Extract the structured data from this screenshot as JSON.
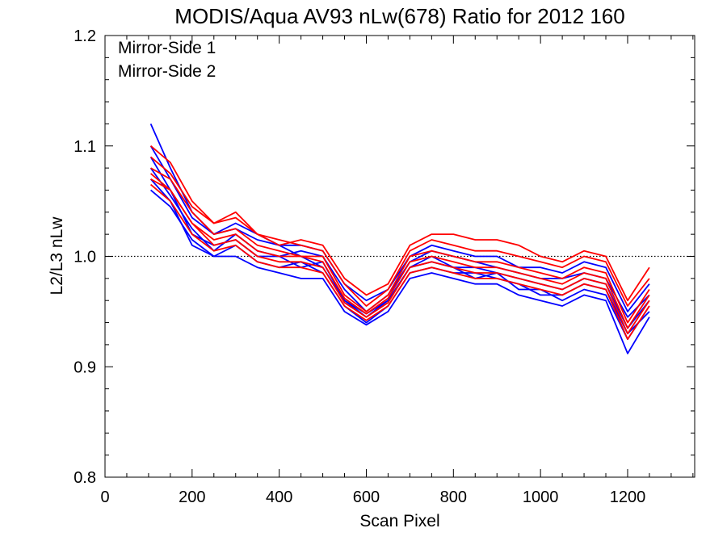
{
  "chart_data": {
    "type": "line",
    "title": "MODIS/Aqua AV93 nLw(678) Ratio for 2012 160",
    "xlabel": "Scan Pixel",
    "ylabel": "L2/L3 nLw",
    "xlim": [
      0,
      1354
    ],
    "ylim": [
      0.8,
      1.2
    ],
    "xticks": [
      0,
      200,
      400,
      600,
      800,
      1000,
      1200
    ],
    "yticks": [
      0.8,
      0.9,
      1.0,
      1.1,
      1.2
    ],
    "xtick_labels": [
      "0",
      "200",
      "400",
      "600",
      "800",
      "1000",
      "1200"
    ],
    "ytick_labels": [
      "0.8",
      "0.9",
      "1.0",
      "1.1",
      "1.2"
    ],
    "reference_line": {
      "y": 1.0,
      "style": "dotted"
    },
    "legend_position": "top-left",
    "colors": {
      "mirror_side_1": "#0000ff",
      "mirror_side_2": "#ff0000"
    },
    "x": [
      105,
      150,
      200,
      250,
      300,
      350,
      400,
      450,
      500,
      550,
      600,
      650,
      700,
      750,
      800,
      850,
      900,
      950,
      1000,
      1050,
      1100,
      1150,
      1200,
      1250
    ],
    "series": [
      {
        "name": "Mirror-Side 1",
        "group": 1,
        "values": [
          1.12,
          1.08,
          1.04,
          1.02,
          1.03,
          1.02,
          1.01,
          1.0,
          0.99,
          0.96,
          0.945,
          0.96,
          0.99,
          1.0,
          0.99,
          0.99,
          0.985,
          0.98,
          0.975,
          0.97,
          0.98,
          0.975,
          0.935,
          0.96
        ]
      },
      {
        "name": "",
        "group": 1,
        "values": [
          1.09,
          1.06,
          1.02,
          1.01,
          1.015,
          1.0,
          1.0,
          1.005,
          1.0,
          0.97,
          0.95,
          0.965,
          0.995,
          1.005,
          1.0,
          0.995,
          0.99,
          0.985,
          0.98,
          0.98,
          0.985,
          0.98,
          0.945,
          0.965
        ]
      },
      {
        "name": "",
        "group": 1,
        "values": [
          1.07,
          1.05,
          1.01,
          1.0,
          1.01,
          0.995,
          0.99,
          0.995,
          0.985,
          0.955,
          0.94,
          0.955,
          0.985,
          0.99,
          0.985,
          0.985,
          0.98,
          0.975,
          0.965,
          0.965,
          0.975,
          0.97,
          0.93,
          0.95
        ]
      },
      {
        "name": "",
        "group": 1,
        "values": [
          1.1,
          1.07,
          1.035,
          1.02,
          1.025,
          1.015,
          1.01,
          1.01,
          1.005,
          0.975,
          0.96,
          0.97,
          1.0,
          1.01,
          1.005,
          1.0,
          1.0,
          0.99,
          0.99,
          0.985,
          0.995,
          0.99,
          0.95,
          0.975
        ]
      },
      {
        "name": "",
        "group": 1,
        "values": [
          1.08,
          1.055,
          1.025,
          1.005,
          1.02,
          1.005,
          1.0,
          0.99,
          0.995,
          0.96,
          0.948,
          0.96,
          0.99,
          0.995,
          0.99,
          0.98,
          0.985,
          0.97,
          0.97,
          0.96,
          0.97,
          0.965,
          0.925,
          0.955
        ]
      },
      {
        "name": "",
        "group": 1,
        "values": [
          1.06,
          1.045,
          1.015,
          1.0,
          1.0,
          0.99,
          0.985,
          0.98,
          0.98,
          0.95,
          0.938,
          0.95,
          0.98,
          0.985,
          0.98,
          0.975,
          0.975,
          0.965,
          0.96,
          0.955,
          0.965,
          0.96,
          0.912,
          0.945
        ]
      },
      {
        "name": "Mirror-Side 2",
        "group": 2,
        "values": [
          1.1,
          1.085,
          1.05,
          1.03,
          1.035,
          1.02,
          1.015,
          1.01,
          1.005,
          0.975,
          0.955,
          0.97,
          1.005,
          1.015,
          1.01,
          1.005,
          1.005,
          1.0,
          0.995,
          0.99,
          1.0,
          0.995,
          0.955,
          0.98
        ]
      },
      {
        "name": "",
        "group": 2,
        "values": [
          1.08,
          1.07,
          1.04,
          1.02,
          1.025,
          1.01,
          1.005,
          1.0,
          1.0,
          0.965,
          0.95,
          0.965,
          1.0,
          1.005,
          1.0,
          0.995,
          0.995,
          0.99,
          0.985,
          0.98,
          0.99,
          0.985,
          0.94,
          0.97
        ]
      },
      {
        "name": "",
        "group": 2,
        "values": [
          1.07,
          1.06,
          1.03,
          1.01,
          1.015,
          1.0,
          0.995,
          0.995,
          0.99,
          0.958,
          0.945,
          0.958,
          0.99,
          0.995,
          0.99,
          0.985,
          0.985,
          0.98,
          0.975,
          0.97,
          0.98,
          0.975,
          0.93,
          0.96
        ]
      },
      {
        "name": "",
        "group": 2,
        "values": [
          1.065,
          1.05,
          1.02,
          1.005,
          1.01,
          0.995,
          0.99,
          0.99,
          0.985,
          0.955,
          0.942,
          0.955,
          0.985,
          0.99,
          0.985,
          0.98,
          0.98,
          0.975,
          0.97,
          0.965,
          0.975,
          0.97,
          0.925,
          0.955
        ]
      },
      {
        "name": "",
        "group": 2,
        "values": [
          1.09,
          1.075,
          1.045,
          1.03,
          1.04,
          1.02,
          1.01,
          1.015,
          1.01,
          0.98,
          0.965,
          0.975,
          1.01,
          1.02,
          1.02,
          1.015,
          1.015,
          1.01,
          1.0,
          0.995,
          1.005,
          1.0,
          0.96,
          0.99
        ]
      },
      {
        "name": "",
        "group": 2,
        "values": [
          1.075,
          1.06,
          1.03,
          1.015,
          1.02,
          1.005,
          1.0,
          1.0,
          0.995,
          0.962,
          0.948,
          0.962,
          0.995,
          1.0,
          0.995,
          0.99,
          0.99,
          0.985,
          0.98,
          0.975,
          0.985,
          0.98,
          0.935,
          0.965
        ]
      }
    ]
  }
}
